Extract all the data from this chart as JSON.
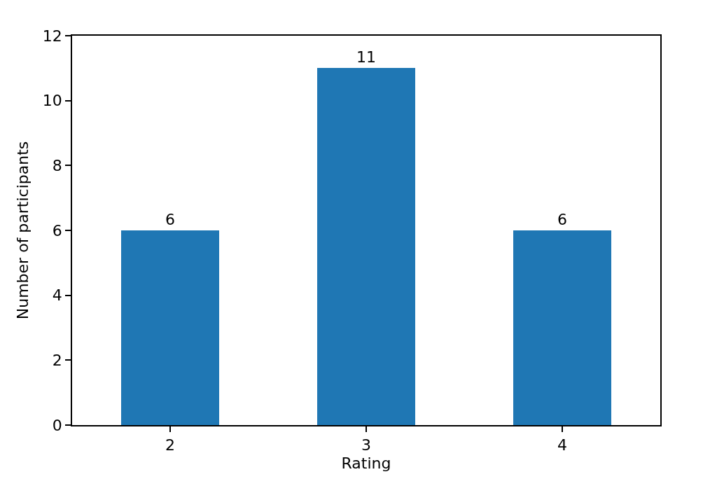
{
  "chart_data": {
    "type": "bar",
    "xlabel": "Rating",
    "ylabel": "Number of participants",
    "categories": [
      "2",
      "3",
      "4"
    ],
    "values": [
      6,
      11,
      6
    ],
    "color": "#1f77b4",
    "ylim": [
      0,
      12
    ],
    "yticks": [
      0,
      2,
      4,
      6,
      8,
      10,
      12
    ],
    "data_labels": true
  }
}
